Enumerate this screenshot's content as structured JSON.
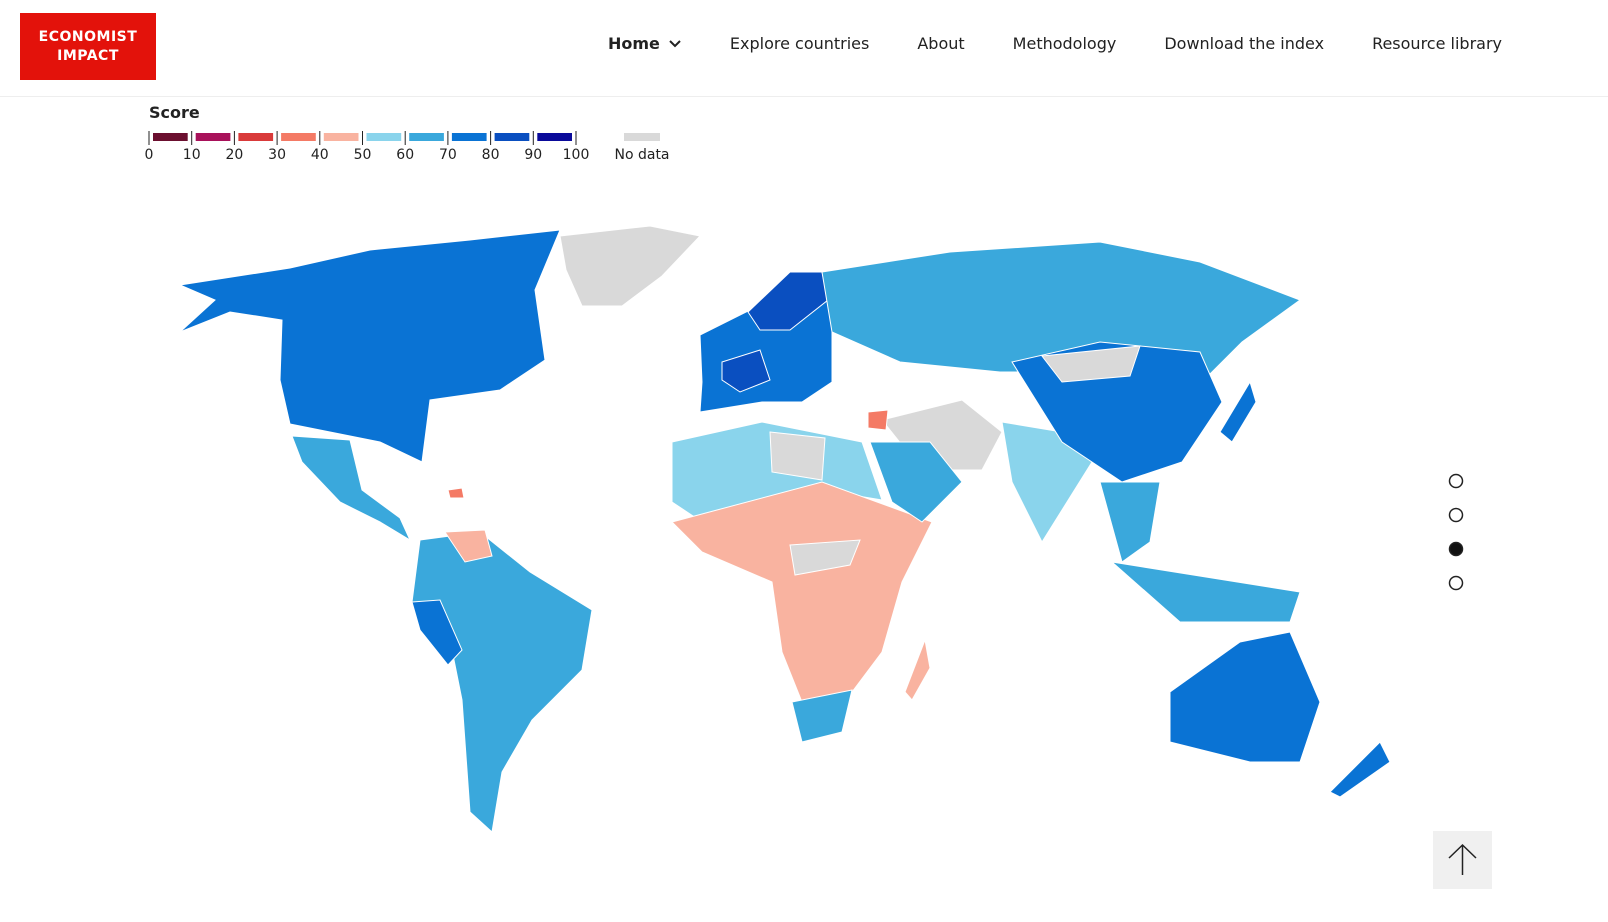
{
  "header": {
    "logo": [
      "ECONOMIST",
      "IMPACT"
    ],
    "nav": [
      "Home",
      "Explore countries",
      "About",
      "Methodology",
      "Download the index",
      "Resource library"
    ]
  },
  "legend": {
    "title": "Score",
    "ticks": [
      0,
      10,
      20,
      30,
      40,
      50,
      60,
      70,
      80,
      90,
      100
    ],
    "colors": [
      "#6b0f2f",
      "#a8115a",
      "#d93a3a",
      "#f47a65",
      "#f9b3a0",
      "#8ad4ec",
      "#3aa8dc",
      "#0a73d4",
      "#0a4fc0",
      "#0a0a9a"
    ],
    "no_data_label": "No data",
    "no_data_color": "#d9d9d9"
  }
}
